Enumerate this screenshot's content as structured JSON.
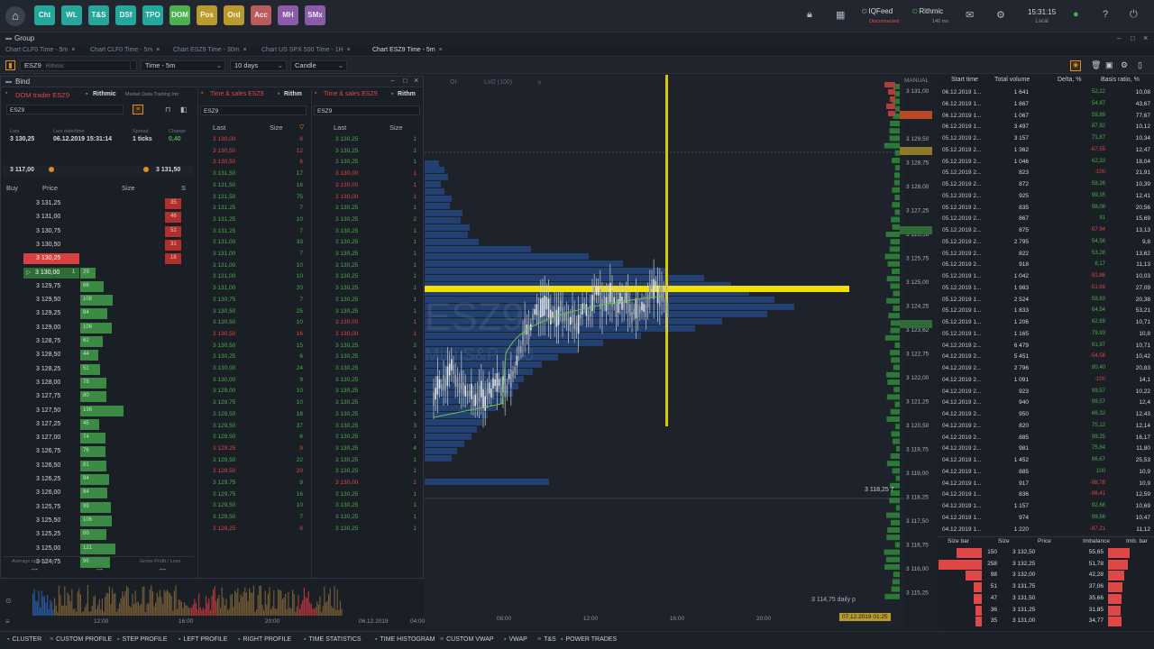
{
  "topbar": {
    "buttons": [
      {
        "label": "Cht",
        "bg": "#26a69a",
        "fg": "#e8f6f3"
      },
      {
        "label": "WL",
        "bg": "#26a69a",
        "fg": "#e8f6f3"
      },
      {
        "label": "T&S",
        "bg": "#26a69a",
        "fg": "#e8f6f3"
      },
      {
        "label": "DSf",
        "bg": "#26a69a",
        "fg": "#e8f6f3"
      },
      {
        "label": "TPO",
        "bg": "#26a69a",
        "fg": "#e8f6f3"
      },
      {
        "label": "DOM",
        "bg": "#4caf50",
        "fg": "#eaf6e8"
      },
      {
        "label": "Pos",
        "bg": "#b89a2e",
        "fg": "#fff6da"
      },
      {
        "label": "Ord",
        "bg": "#b89a2e",
        "fg": "#fff6da"
      },
      {
        "label": "Acc",
        "bg": "#b85c5c",
        "fg": "#ffe8e8"
      },
      {
        "label": "MH",
        "bg": "#8a5ba8",
        "fg": "#f3e8fa"
      },
      {
        "label": "SMx",
        "bg": "#8a5ba8",
        "fg": "#f3e8fa"
      }
    ],
    "feed1": "IQFeed",
    "feed1_status": "Disconnected",
    "feed2": "Rithmic",
    "feed2_status": "146 ms",
    "time": "15:31:15",
    "time_label": "Local"
  },
  "group": {
    "title": "Group"
  },
  "tabs": [
    "Chart CLF0 Time - 5m",
    "Chart CLF0 Time - 5m",
    "Chart ESZ9 Time - 30m",
    "Chart US SPX 500 Time - 1H",
    "Chart ESZ9 Time - 5m"
  ],
  "toolbar": {
    "symbol": "ESZ9",
    "provider": "Rithmic",
    "interval": "Time - 5m",
    "range": "10 days",
    "type": "Candle"
  },
  "chart": {
    "watermark_symbol": "ESZ9",
    "watermark_name": "Mini S&P 500",
    "overlay1": "Ol-",
    "overlay2": "Lvl2 (100)",
    "manual": "MANUAL",
    "price_axis": [
      "3 131,00",
      "3 130,25",
      "3 129,50",
      "3 128,75",
      "3 128,00",
      "3 127,25",
      "3 126,56",
      "3 125,75",
      "3 125,00",
      "3 124,25",
      "3 123,62",
      "3 122,75",
      "3 122,00",
      "3 121,25",
      "3 120,50",
      "3 119,75",
      "3 119,00",
      "3 118,25",
      "3 117,50",
      "3 116,75",
      "3 116,00",
      "3 115,25"
    ],
    "time_axis": [
      "12:00",
      "16:00",
      "20:00",
      "06.12.2019",
      "04:00",
      "08:00",
      "12:00",
      "16:00",
      "20:00"
    ],
    "daily_label": "3 114,75 daily p",
    "level_label": "3 118,25 7",
    "date_badge": "07.12.2019 01:25"
  },
  "panel": {
    "title": "Bind",
    "dom": {
      "title": "DOM trader ESZ9",
      "provider": "Rithmic",
      "sub": "Market Data Trading Intr",
      "symbol": "ESZ9",
      "last_label": "Last",
      "last": "3 130,25",
      "lastdt_label": "Last date/time",
      "lastdt": "06.12.2019 15:31:14",
      "spread_label": "Spread",
      "spread": "1 ticks",
      "change_label": "Change",
      "change": "0,40",
      "low": "3 117,00",
      "high": "3 131,50",
      "col_buy": "Buy",
      "col_price": "Price",
      "col_size": "Size",
      "col_s": "S",
      "rows": [
        {
          "p": "3 131,25",
          "ask": "35"
        },
        {
          "p": "3 131,00",
          "ask": "46"
        },
        {
          "p": "3 130,75",
          "ask": "52"
        },
        {
          "p": "3 130,50",
          "ask": "31"
        },
        {
          "p": "3 130,25",
          "ask": "18",
          "hl": "red"
        },
        {
          "p": "3 130,00",
          "bid": "1",
          "bid2": "29",
          "hl": "green"
        },
        {
          "p": "3 129,75",
          "bid": "66"
        },
        {
          "p": "3 129,50",
          "bid": "108"
        },
        {
          "p": "3 129,25",
          "bid": "84"
        },
        {
          "p": "3 129,00",
          "bid": "106"
        },
        {
          "p": "3 128,75",
          "bid": "62"
        },
        {
          "p": "3 128,50",
          "bid": "44"
        },
        {
          "p": "3 128,25",
          "bid": "51"
        },
        {
          "p": "3 128,00",
          "bid": "78"
        },
        {
          "p": "3 127,75",
          "bid": "80"
        },
        {
          "p": "3 127,50",
          "bid": "196"
        },
        {
          "p": "3 127,25",
          "bid": "45"
        },
        {
          "p": "3 127,00",
          "bid": "74"
        },
        {
          "p": "3 126,75",
          "bid": "76"
        },
        {
          "p": "3 126,50",
          "bid": "81"
        },
        {
          "p": "3 126,25",
          "bid": "94"
        },
        {
          "p": "3 126,00",
          "bid": "84"
        },
        {
          "p": "3 125,75",
          "bid": "99"
        },
        {
          "p": "3 125,50",
          "bid": "106"
        },
        {
          "p": "3 125,25",
          "bid": "80"
        },
        {
          "p": "3 125,00",
          "bid": "121"
        },
        {
          "p": "3 124,75",
          "bid": "96"
        }
      ],
      "foot1": "Average open price",
      "foot2": "Quantity",
      "foot3": "Gross Profit / Loss",
      "foot_v": "---"
    },
    "ts1": {
      "title": "Time & sales ESZ9",
      "provider": "Rithm",
      "symbol": "ESZ9",
      "col_last": "Last",
      "col_size": "Size",
      "rows": [
        [
          "3 130,00",
          "6",
          "r"
        ],
        [
          "3 130,50",
          "12",
          "r"
        ],
        [
          "3 130,50",
          "6",
          "r"
        ],
        [
          "3 131,50",
          "17",
          "g"
        ],
        [
          "3 131,50",
          "16",
          "g"
        ],
        [
          "3 131,50",
          "75",
          "g"
        ],
        [
          "3 131,25",
          "7",
          "g"
        ],
        [
          "3 131,25",
          "10",
          "g"
        ],
        [
          "3 131,25",
          "7",
          "g"
        ],
        [
          "3 131,00",
          "33",
          "g"
        ],
        [
          "3 131,00",
          "7",
          "g"
        ],
        [
          "3 131,00",
          "10",
          "g"
        ],
        [
          "3 131,00",
          "10",
          "g"
        ],
        [
          "3 131,00",
          "20",
          "g"
        ],
        [
          "3 130,75",
          "7",
          "g"
        ],
        [
          "3 130,50",
          "25",
          "g"
        ],
        [
          "3 130,50",
          "10",
          "g"
        ],
        [
          "3 130,50",
          "16",
          "r"
        ],
        [
          "3 130,50",
          "15",
          "g"
        ],
        [
          "3 130,25",
          "6",
          "g"
        ],
        [
          "3 130,00",
          "24",
          "g"
        ],
        [
          "3 130,00",
          "9",
          "g"
        ],
        [
          "3 129,00",
          "10",
          "g"
        ],
        [
          "3 129,75",
          "10",
          "g"
        ],
        [
          "3 129,50",
          "18",
          "g"
        ],
        [
          "3 129,50",
          "37",
          "g"
        ],
        [
          "3 129,50",
          "6",
          "g"
        ],
        [
          "3 129,25",
          "9",
          "r"
        ],
        [
          "3 129,50",
          "22",
          "g"
        ],
        [
          "3 129,50",
          "20",
          "r"
        ],
        [
          "3 129,75",
          "9",
          "g"
        ],
        [
          "3 129,75",
          "16",
          "g"
        ],
        [
          "3 129,50",
          "10",
          "g"
        ],
        [
          "3 129,50",
          "7",
          "g"
        ],
        [
          "3 129,25",
          "6",
          "r"
        ]
      ]
    },
    "ts2": {
      "title": "Time & sales ESZ9",
      "provider": "Rithm",
      "symbol": "ESZ9",
      "col_last": "Last",
      "col_size": "Size",
      "rows": [
        [
          "3 130,25",
          "1",
          "g"
        ],
        [
          "3 130,25",
          "1",
          "g"
        ],
        [
          "3 130,25",
          "1",
          "g"
        ],
        [
          "3 130,00",
          "1",
          "r"
        ],
        [
          "3 130,00",
          "1",
          "r"
        ],
        [
          "3 130,00",
          "1",
          "r"
        ],
        [
          "3 130,25",
          "1",
          "g"
        ],
        [
          "3 130,25",
          "2",
          "g"
        ],
        [
          "3 130,25",
          "1",
          "g"
        ],
        [
          "3 130,25",
          "1",
          "g"
        ],
        [
          "3 130,25",
          "1",
          "g"
        ],
        [
          "3 130,25",
          "1",
          "g"
        ],
        [
          "3 130,25",
          "1",
          "g"
        ],
        [
          "3 130,25",
          "1",
          "g"
        ],
        [
          "3 130,25",
          "1",
          "g"
        ],
        [
          "3 130,25",
          "1",
          "g"
        ],
        [
          "3 130,00",
          "1",
          "r"
        ],
        [
          "3 130,00",
          "1",
          "r"
        ],
        [
          "3 130,25",
          "2",
          "g"
        ],
        [
          "3 130,25",
          "1",
          "g"
        ],
        [
          "3 130,25",
          "1",
          "g"
        ],
        [
          "3 130,25",
          "1",
          "g"
        ],
        [
          "3 130,25",
          "1",
          "g"
        ],
        [
          "3 130,25",
          "1",
          "g"
        ],
        [
          "3 130,25",
          "1",
          "g"
        ],
        [
          "3 130,25",
          "3",
          "g"
        ],
        [
          "3 130,25",
          "1",
          "g"
        ],
        [
          "3 130,25",
          "4",
          "g"
        ],
        [
          "3 130,25",
          "1",
          "g"
        ],
        [
          "3 130,25",
          "1",
          "g"
        ],
        [
          "3 130,00",
          "1",
          "r"
        ],
        [
          "3 130,25",
          "1",
          "g"
        ],
        [
          "3 130,25",
          "1",
          "g"
        ],
        [
          "3 130,25",
          "1",
          "g"
        ],
        [
          "3 130,25",
          "1",
          "g"
        ]
      ]
    }
  },
  "stats": {
    "cols": [
      "Start time",
      "Total volume",
      "Delta, %",
      "Basis ratio, %"
    ],
    "rows": [
      [
        "06.12.2019 1...",
        "1 641",
        "52,22",
        "10,08"
      ],
      [
        "06.12.2019 1...",
        "1 867",
        "54,67",
        "43,67"
      ],
      [
        "06.12.2019 1...",
        "1 067",
        "59,89",
        "77,67"
      ],
      [
        "06.12.2019 1...",
        "3 497",
        "87,82",
        "10,12"
      ],
      [
        "05.12.2019 2...",
        "3 157",
        "71,87",
        "10,34"
      ],
      [
        "05.12.2019 2...",
        "1 362",
        "-67,55",
        "12,47"
      ],
      [
        "05.12.2019 2...",
        "1 046",
        "62,33",
        "18,04"
      ],
      [
        "05.12.2019 2...",
        "823",
        "-100",
        "21,91"
      ],
      [
        "05.12.2019 2...",
        "872",
        "59,26",
        "10,39"
      ],
      [
        "05.12.2019 2...",
        "925",
        "99,35",
        "12,41"
      ],
      [
        "05.12.2019 2...",
        "835",
        "98,08",
        "20,56"
      ],
      [
        "05.12.2019 2...",
        "867",
        "91",
        "15,69"
      ],
      [
        "05.12.2019 2...",
        "875",
        "-97,94",
        "13,13"
      ],
      [
        "05.12.2019 2...",
        "2 795",
        "54,56",
        "9,8"
      ],
      [
        "05.12.2019 2...",
        "822",
        "53,28",
        "13,62"
      ],
      [
        "05.12.2019 2...",
        "918",
        "8,17",
        "11,13"
      ],
      [
        "05.12.2019 1...",
        "1 042",
        "-91,88",
        "10,03"
      ],
      [
        "05.12.2019 1...",
        "1 983",
        "-51,69",
        "27,09"
      ],
      [
        "05.12.2019 1...",
        "2 524",
        "59,83",
        "20,38"
      ],
      [
        "05.12.2019 1...",
        "1 833",
        "64,54",
        "53,21"
      ],
      [
        "05.12.2019 1...",
        "1 206",
        "62,69",
        "10,71"
      ],
      [
        "05.12.2019 1...",
        "1 165",
        "79,93",
        "10,8"
      ],
      [
        "04.12.2019 2...",
        "6 479",
        "61,97",
        "10,71"
      ],
      [
        "04.12.2019 2...",
        "5 451",
        "-54,58",
        "10,42"
      ],
      [
        "04.12.2019 2...",
        "2 796",
        "80,40",
        "20,83"
      ],
      [
        "04.12.2019 2...",
        "1 091",
        "-100",
        "14,1"
      ],
      [
        "04.12.2019 2...",
        "923",
        "99,57",
        "10,22"
      ],
      [
        "04.12.2019 2...",
        "940",
        "99,57",
        "12,4"
      ],
      [
        "04.12.2019 2...",
        "950",
        "66,32",
        "12,43"
      ],
      [
        "04.12.2019 2...",
        "820",
        "75,12",
        "12,14"
      ],
      [
        "04.12.2019 2...",
        "885",
        "99,25",
        "16,17"
      ],
      [
        "04.12.2019 2...",
        "981",
        "75,84",
        "11,80"
      ],
      [
        "04.12.2019 1...",
        "1 452",
        "66,67",
        "25,53"
      ],
      [
        "04.12.2019 1...",
        "885",
        "100",
        "10,9"
      ],
      [
        "04.12.2019 1...",
        "917",
        "-98,78",
        "10,9"
      ],
      [
        "04.12.2019 1...",
        "836",
        "-96,41",
        "12,59"
      ],
      [
        "04.12.2019 1...",
        "1 157",
        "92,66",
        "10,69"
      ],
      [
        "04.12.2019 1...",
        "974",
        "99,56",
        "10,47"
      ],
      [
        "04.12.2019 1...",
        "1 220",
        "-87,21",
        "11,12"
      ]
    ]
  },
  "imbalance": {
    "cols": [
      "Size bar",
      "Size",
      "Price",
      "Imbalance",
      "Imb. bar"
    ],
    "rows": [
      [
        "150",
        "3 132,50",
        "55,65"
      ],
      [
        "258",
        "3 132,25",
        "51,78"
      ],
      [
        "98",
        "3 132,00",
        "42,28"
      ],
      [
        "51",
        "3 131,75",
        "37,06"
      ],
      [
        "47",
        "3 131,50",
        "35,66"
      ],
      [
        "36",
        "3 131,25",
        "31,85"
      ],
      [
        "35",
        "3 131,00",
        "34,77"
      ]
    ]
  },
  "bottombar": [
    {
      "label": "CLUSTER",
      "dot": "#4caf50"
    },
    {
      "label": "CUSTOM PROFILE",
      "dot": ""
    },
    {
      "label": "STEP PROFILE",
      "dot": "#4caf50"
    },
    {
      "label": "LEFT PROFILE",
      "dot": "#4caf50"
    },
    {
      "label": "RIGHT PROFILE",
      "dot": "#4caf50"
    },
    {
      "label": "TIME STATISTICS",
      "dot": "#4caf50"
    },
    {
      "label": "TIME HISTOGRAM",
      "dot": "#4caf50"
    },
    {
      "label": "CUSTOM VWAP",
      "dot": ""
    },
    {
      "label": "VWAP",
      "dot": "#4caf50"
    },
    {
      "label": "T&S",
      "dot": ""
    },
    {
      "label": "POWER TRADES",
      "dot": "#4caf50"
    }
  ]
}
